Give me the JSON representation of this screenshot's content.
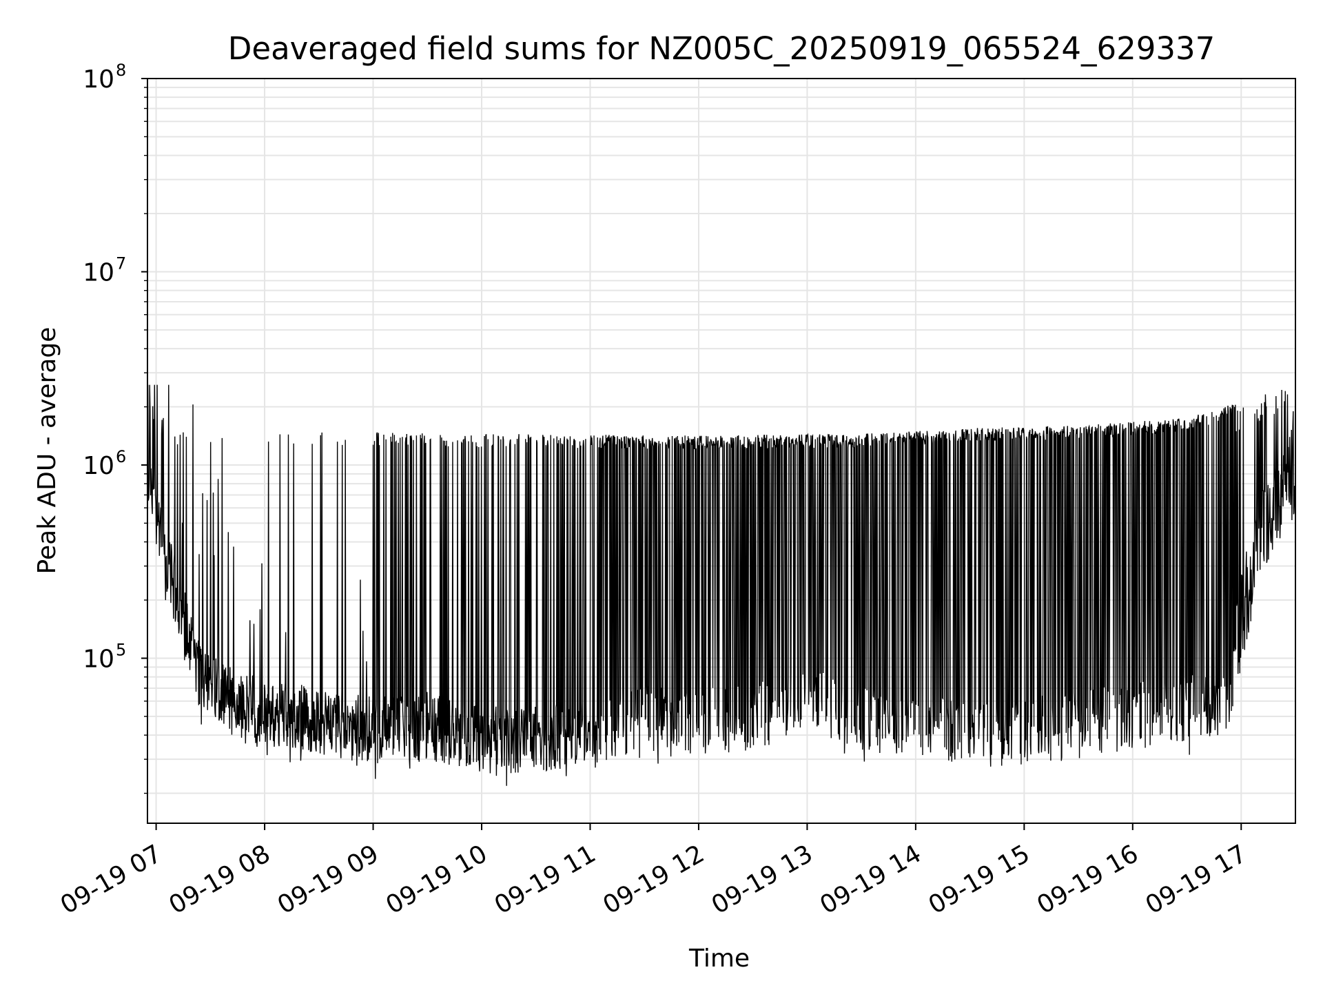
{
  "chart_data": {
    "type": "line",
    "title": "Deaveraged field sums for NZ005C_20250919_065524_629337",
    "xlabel": "Time",
    "ylabel": "Peak ADU - average",
    "yscale": "log",
    "ylim": [
      14000,
      100000000
    ],
    "xlim_hours": [
      6.92,
      17.5
    ],
    "grid": true,
    "line_color": "#000000",
    "grid_color": "#e5e5e5",
    "x_ticks": [
      {
        "hour": 7,
        "label": "09-19 07"
      },
      {
        "hour": 8,
        "label": "09-19 08"
      },
      {
        "hour": 9,
        "label": "09-19 09"
      },
      {
        "hour": 10,
        "label": "09-19 10"
      },
      {
        "hour": 11,
        "label": "09-19 11"
      },
      {
        "hour": 12,
        "label": "09-19 12"
      },
      {
        "hour": 13,
        "label": "09-19 13"
      },
      {
        "hour": 14,
        "label": "09-19 14"
      },
      {
        "hour": 15,
        "label": "09-19 15"
      },
      {
        "hour": 16,
        "label": "09-19 16"
      },
      {
        "hour": 17,
        "label": "09-19 17"
      }
    ],
    "y_ticks": [
      {
        "value": 100000,
        "base": "10",
        "exp": "5"
      },
      {
        "value": 1000000,
        "base": "10",
        "exp": "6"
      },
      {
        "value": 10000000,
        "base": "10",
        "exp": "7"
      },
      {
        "value": 100000000,
        "base": "10",
        "exp": "8"
      }
    ],
    "series": [
      {
        "name": "deaveraged field sum",
        "baseline_profile": {
          "hours": [
            6.92,
            7.0,
            7.2,
            7.4,
            7.7,
            8.0,
            8.5,
            9.0,
            9.5,
            10.0,
            10.5,
            11.0,
            11.5,
            12.0,
            12.5,
            13.0,
            13.5,
            14.0,
            14.5,
            15.0,
            15.5,
            16.0,
            16.5,
            16.9,
            17.0,
            17.2,
            17.4,
            17.5
          ],
          "values": [
            1000000,
            500000,
            200000,
            80000,
            60000,
            52000,
            48000,
            42000,
            45000,
            38000,
            38000,
            42000,
            50000,
            47000,
            50000,
            60000,
            50000,
            45000,
            40000,
            42000,
            45000,
            50000,
            55000,
            60000,
            150000,
            400000,
            800000,
            900000
          ]
        },
        "spike_level": [
          {
            "hour": 7.0,
            "value": 1500000
          },
          {
            "hour": 8.0,
            "value": 1500000
          },
          {
            "hour": 10.0,
            "value": 1450000
          },
          {
            "hour": 12.0,
            "value": 1420000
          },
          {
            "hour": 13.5,
            "value": 1450000
          },
          {
            "hour": 14.5,
            "value": 1550000
          },
          {
            "hour": 15.5,
            "value": 1600000
          },
          {
            "hour": 16.5,
            "value": 1750000
          },
          {
            "hour": 17.5,
            "value": 2600000
          }
        ],
        "peak_max": 2600000,
        "min_value": 20000,
        "samples": 2600
      }
    ]
  }
}
